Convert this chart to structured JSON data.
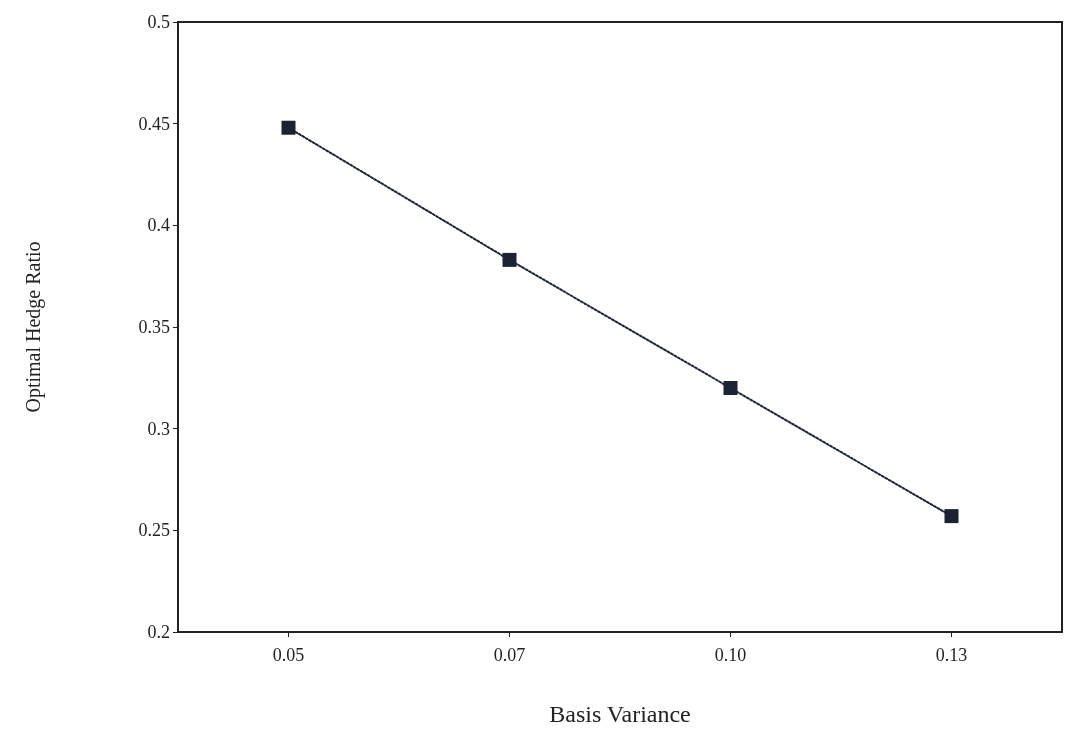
{
  "chart_data": {
    "type": "line",
    "xlabel": "Basis Variance",
    "ylabel": "Optimal Hedge Ratio",
    "categories": [
      "0.05",
      "0.07",
      "0.10",
      "0.13"
    ],
    "series": [
      {
        "color": "#1c2433",
        "values": [
          0.448,
          0.383,
          0.32,
          0.257
        ]
      }
    ],
    "ylim": [
      0.2,
      0.5
    ],
    "yticks": [
      0.2,
      0.25,
      0.3,
      0.35,
      0.4,
      0.45,
      0.5
    ],
    "grid": false,
    "marker": "square",
    "line_style": "dotted"
  }
}
